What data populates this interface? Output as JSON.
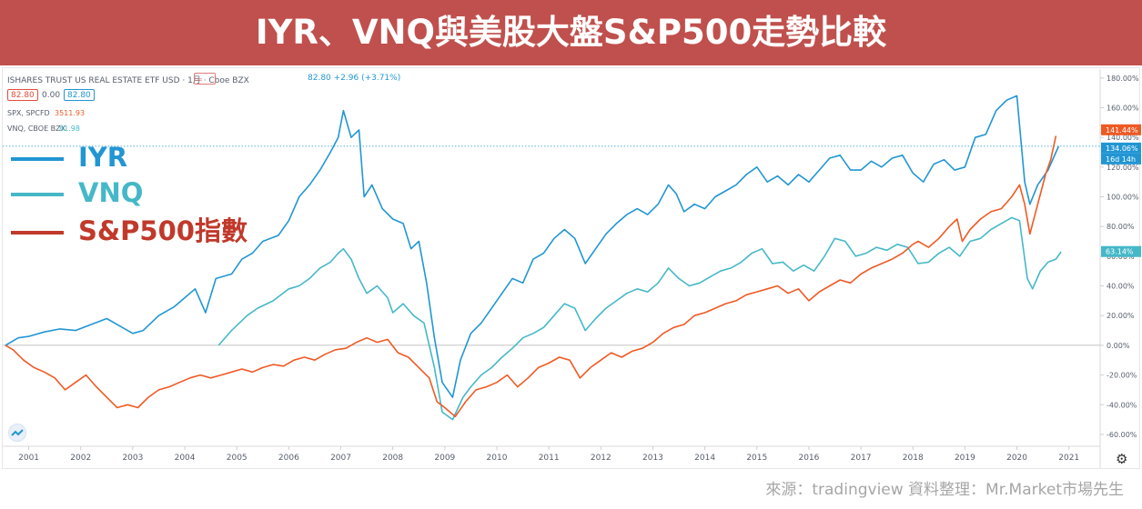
{
  "title": "IYR、VNQ與美股大盤S&P500走勢比較",
  "source_text": "來源：tradingview  資料整理：Mr.Market市場先生",
  "header": {
    "symbol_line": "ISHARES TRUST US REAL ESTATE ETF USD · 1月 · Cboe BZX",
    "price_line": "82.80 +2.96 (+3.71%)",
    "bid": "82.80",
    "spread": "0.00",
    "ask": "82.80",
    "spx_label": "SPX, SPCFD",
    "spx_value": "3511.93",
    "vnq_label": "VNQ, CBOE BZX",
    "vnq_value": "81.98"
  },
  "legend": {
    "iyr": "IYR",
    "vnq": "VNQ",
    "sp500": "S&P500指數"
  },
  "colors": {
    "title_bg": "#c0504d",
    "iyr": "#2196d3",
    "vnq": "#45b8c8",
    "sp500": "#ef5a24",
    "sp500_legend": "#c0392b"
  },
  "icons": {
    "settings": "gear-icon",
    "logo": "tradingview-logo-icon",
    "compare": "compare-icon"
  },
  "chart_data": {
    "type": "line",
    "title": "IYR、VNQ與美股大盤S&P500走勢比較",
    "x_axis": {
      "ticks": [
        "2001",
        "2002",
        "2003",
        "2004",
        "2005",
        "2006",
        "2007",
        "2008",
        "2009",
        "2010",
        "2011",
        "2012",
        "2013",
        "2014",
        "2015",
        "2016",
        "2017",
        "2018",
        "2019",
        "2020",
        "2021"
      ],
      "range": [
        2000.5,
        2021.6
      ]
    },
    "y_axis": {
      "unit": "%",
      "ticks": [
        "180.00%",
        "160.00%",
        "140.00%",
        "120.00%",
        "100.00%",
        "80.00%",
        "60.00%",
        "40.00%",
        "20.00%",
        "0.00%",
        "-20.00%",
        "-40.00%",
        "-60.00%"
      ],
      "range": [
        -68,
        186
      ],
      "position": "right"
    },
    "price_tags": {
      "sp500": "141.44%",
      "iyr": "134.06%",
      "countdown": "16d 14h",
      "vnq": "63.14%"
    },
    "grid": false,
    "baseline": 0,
    "series": [
      {
        "name": "IYR",
        "key": "iyr",
        "points": [
          [
            2000.55,
            0
          ],
          [
            2000.8,
            5
          ],
          [
            2001.0,
            6
          ],
          [
            2001.3,
            9
          ],
          [
            2001.6,
            11
          ],
          [
            2001.9,
            10
          ],
          [
            2002.2,
            14
          ],
          [
            2002.5,
            18
          ],
          [
            2002.8,
            12
          ],
          [
            2003.0,
            8
          ],
          [
            2003.2,
            10
          ],
          [
            2003.5,
            20
          ],
          [
            2003.8,
            26
          ],
          [
            2004.0,
            32
          ],
          [
            2004.2,
            38
          ],
          [
            2004.4,
            22
          ],
          [
            2004.6,
            45
          ],
          [
            2004.9,
            48
          ],
          [
            2005.1,
            58
          ],
          [
            2005.3,
            62
          ],
          [
            2005.5,
            70
          ],
          [
            2005.8,
            74
          ],
          [
            2006.0,
            84
          ],
          [
            2006.2,
            100
          ],
          [
            2006.4,
            108
          ],
          [
            2006.6,
            118
          ],
          [
            2006.8,
            130
          ],
          [
            2006.95,
            140
          ],
          [
            2007.05,
            158
          ],
          [
            2007.2,
            140
          ],
          [
            2007.35,
            145
          ],
          [
            2007.45,
            100
          ],
          [
            2007.6,
            108
          ],
          [
            2007.8,
            92
          ],
          [
            2008.0,
            85
          ],
          [
            2008.2,
            82
          ],
          [
            2008.35,
            65
          ],
          [
            2008.5,
            70
          ],
          [
            2008.65,
            42
          ],
          [
            2008.8,
            5
          ],
          [
            2008.95,
            -25
          ],
          [
            2009.15,
            -35
          ],
          [
            2009.3,
            -10
          ],
          [
            2009.5,
            8
          ],
          [
            2009.7,
            15
          ],
          [
            2009.9,
            25
          ],
          [
            2010.1,
            35
          ],
          [
            2010.3,
            45
          ],
          [
            2010.5,
            42
          ],
          [
            2010.7,
            58
          ],
          [
            2010.9,
            62
          ],
          [
            2011.1,
            72
          ],
          [
            2011.3,
            78
          ],
          [
            2011.5,
            72
          ],
          [
            2011.7,
            55
          ],
          [
            2011.9,
            65
          ],
          [
            2012.1,
            75
          ],
          [
            2012.3,
            82
          ],
          [
            2012.5,
            88
          ],
          [
            2012.7,
            92
          ],
          [
            2012.9,
            88
          ],
          [
            2013.1,
            95
          ],
          [
            2013.3,
            108
          ],
          [
            2013.45,
            102
          ],
          [
            2013.6,
            90
          ],
          [
            2013.8,
            95
          ],
          [
            2014.0,
            92
          ],
          [
            2014.2,
            100
          ],
          [
            2014.4,
            104
          ],
          [
            2014.6,
            108
          ],
          [
            2014.8,
            115
          ],
          [
            2015.0,
            120
          ],
          [
            2015.2,
            110
          ],
          [
            2015.4,
            114
          ],
          [
            2015.6,
            108
          ],
          [
            2015.8,
            115
          ],
          [
            2016.0,
            110
          ],
          [
            2016.2,
            118
          ],
          [
            2016.4,
            126
          ],
          [
            2016.6,
            128
          ],
          [
            2016.8,
            118
          ],
          [
            2017.0,
            118
          ],
          [
            2017.2,
            124
          ],
          [
            2017.4,
            120
          ],
          [
            2017.6,
            126
          ],
          [
            2017.8,
            128
          ],
          [
            2018.0,
            116
          ],
          [
            2018.2,
            110
          ],
          [
            2018.4,
            122
          ],
          [
            2018.6,
            125
          ],
          [
            2018.8,
            118
          ],
          [
            2019.0,
            120
          ],
          [
            2019.2,
            140
          ],
          [
            2019.4,
            142
          ],
          [
            2019.6,
            158
          ],
          [
            2019.8,
            165
          ],
          [
            2020.0,
            168
          ],
          [
            2020.15,
            110
          ],
          [
            2020.25,
            95
          ],
          [
            2020.4,
            108
          ],
          [
            2020.6,
            118
          ],
          [
            2020.8,
            134
          ]
        ]
      },
      {
        "name": "VNQ",
        "key": "vnq",
        "points": [
          [
            2004.65,
            0
          ],
          [
            2004.9,
            10
          ],
          [
            2005.2,
            20
          ],
          [
            2005.4,
            25
          ],
          [
            2005.7,
            30
          ],
          [
            2006.0,
            38
          ],
          [
            2006.2,
            40
          ],
          [
            2006.4,
            45
          ],
          [
            2006.6,
            52
          ],
          [
            2006.8,
            56
          ],
          [
            2006.95,
            62
          ],
          [
            2007.05,
            65
          ],
          [
            2007.2,
            58
          ],
          [
            2007.35,
            45
          ],
          [
            2007.5,
            35
          ],
          [
            2007.7,
            40
          ],
          [
            2007.9,
            32
          ],
          [
            2008.0,
            22
          ],
          [
            2008.2,
            28
          ],
          [
            2008.4,
            20
          ],
          [
            2008.6,
            15
          ],
          [
            2008.8,
            -15
          ],
          [
            2008.95,
            -45
          ],
          [
            2009.15,
            -50
          ],
          [
            2009.35,
            -35
          ],
          [
            2009.5,
            -28
          ],
          [
            2009.7,
            -20
          ],
          [
            2009.9,
            -15
          ],
          [
            2010.1,
            -8
          ],
          [
            2010.3,
            -2
          ],
          [
            2010.5,
            5
          ],
          [
            2010.7,
            8
          ],
          [
            2010.9,
            12
          ],
          [
            2011.1,
            20
          ],
          [
            2011.3,
            28
          ],
          [
            2011.5,
            25
          ],
          [
            2011.7,
            10
          ],
          [
            2011.9,
            18
          ],
          [
            2012.1,
            25
          ],
          [
            2012.3,
            30
          ],
          [
            2012.5,
            35
          ],
          [
            2012.7,
            38
          ],
          [
            2012.9,
            36
          ],
          [
            2013.1,
            42
          ],
          [
            2013.3,
            52
          ],
          [
            2013.5,
            45
          ],
          [
            2013.7,
            40
          ],
          [
            2013.9,
            42
          ],
          [
            2014.1,
            46
          ],
          [
            2014.3,
            50
          ],
          [
            2014.5,
            52
          ],
          [
            2014.7,
            56
          ],
          [
            2014.9,
            62
          ],
          [
            2015.1,
            65
          ],
          [
            2015.3,
            55
          ],
          [
            2015.5,
            56
          ],
          [
            2015.7,
            50
          ],
          [
            2015.9,
            54
          ],
          [
            2016.1,
            50
          ],
          [
            2016.3,
            60
          ],
          [
            2016.5,
            72
          ],
          [
            2016.7,
            70
          ],
          [
            2016.9,
            60
          ],
          [
            2017.1,
            62
          ],
          [
            2017.3,
            66
          ],
          [
            2017.5,
            64
          ],
          [
            2017.7,
            68
          ],
          [
            2017.9,
            66
          ],
          [
            2018.1,
            55
          ],
          [
            2018.3,
            56
          ],
          [
            2018.5,
            62
          ],
          [
            2018.7,
            66
          ],
          [
            2018.9,
            60
          ],
          [
            2019.1,
            70
          ],
          [
            2019.3,
            72
          ],
          [
            2019.5,
            78
          ],
          [
            2019.7,
            82
          ],
          [
            2019.9,
            86
          ],
          [
            2020.05,
            84
          ],
          [
            2020.2,
            45
          ],
          [
            2020.3,
            38
          ],
          [
            2020.45,
            50
          ],
          [
            2020.6,
            56
          ],
          [
            2020.75,
            58
          ],
          [
            2020.85,
            63
          ]
        ]
      },
      {
        "name": "S&P500指數",
        "key": "sp500",
        "points": [
          [
            2000.55,
            0
          ],
          [
            2000.7,
            -3
          ],
          [
            2000.9,
            -10
          ],
          [
            2001.1,
            -15
          ],
          [
            2001.3,
            -18
          ],
          [
            2001.5,
            -22
          ],
          [
            2001.7,
            -30
          ],
          [
            2001.9,
            -25
          ],
          [
            2002.1,
            -20
          ],
          [
            2002.3,
            -28
          ],
          [
            2002.5,
            -35
          ],
          [
            2002.7,
            -42
          ],
          [
            2002.9,
            -40
          ],
          [
            2003.1,
            -42
          ],
          [
            2003.3,
            -35
          ],
          [
            2003.5,
            -30
          ],
          [
            2003.7,
            -28
          ],
          [
            2003.9,
            -25
          ],
          [
            2004.1,
            -22
          ],
          [
            2004.3,
            -20
          ],
          [
            2004.5,
            -22
          ],
          [
            2004.7,
            -20
          ],
          [
            2004.9,
            -18
          ],
          [
            2005.1,
            -16
          ],
          [
            2005.3,
            -18
          ],
          [
            2005.5,
            -15
          ],
          [
            2005.7,
            -13
          ],
          [
            2005.9,
            -14
          ],
          [
            2006.1,
            -10
          ],
          [
            2006.3,
            -8
          ],
          [
            2006.5,
            -10
          ],
          [
            2006.7,
            -6
          ],
          [
            2006.9,
            -3
          ],
          [
            2007.1,
            -2
          ],
          [
            2007.3,
            2
          ],
          [
            2007.5,
            5
          ],
          [
            2007.7,
            2
          ],
          [
            2007.9,
            4
          ],
          [
            2008.1,
            -5
          ],
          [
            2008.3,
            -8
          ],
          [
            2008.5,
            -15
          ],
          [
            2008.7,
            -22
          ],
          [
            2008.85,
            -38
          ],
          [
            2009.0,
            -42
          ],
          [
            2009.2,
            -48
          ],
          [
            2009.4,
            -38
          ],
          [
            2009.6,
            -30
          ],
          [
            2009.8,
            -28
          ],
          [
            2010.0,
            -25
          ],
          [
            2010.2,
            -20
          ],
          [
            2010.4,
            -28
          ],
          [
            2010.6,
            -22
          ],
          [
            2010.8,
            -15
          ],
          [
            2011.0,
            -12
          ],
          [
            2011.2,
            -8
          ],
          [
            2011.4,
            -10
          ],
          [
            2011.6,
            -22
          ],
          [
            2011.8,
            -15
          ],
          [
            2012.0,
            -10
          ],
          [
            2012.2,
            -5
          ],
          [
            2012.4,
            -8
          ],
          [
            2012.6,
            -4
          ],
          [
            2012.8,
            -2
          ],
          [
            2013.0,
            2
          ],
          [
            2013.2,
            8
          ],
          [
            2013.4,
            12
          ],
          [
            2013.6,
            14
          ],
          [
            2013.8,
            20
          ],
          [
            2014.0,
            22
          ],
          [
            2014.2,
            25
          ],
          [
            2014.4,
            28
          ],
          [
            2014.6,
            30
          ],
          [
            2014.8,
            34
          ],
          [
            2015.0,
            36
          ],
          [
            2015.2,
            38
          ],
          [
            2015.4,
            40
          ],
          [
            2015.6,
            35
          ],
          [
            2015.8,
            38
          ],
          [
            2016.0,
            30
          ],
          [
            2016.2,
            36
          ],
          [
            2016.4,
            40
          ],
          [
            2016.6,
            44
          ],
          [
            2016.8,
            42
          ],
          [
            2017.0,
            48
          ],
          [
            2017.2,
            52
          ],
          [
            2017.4,
            55
          ],
          [
            2017.6,
            58
          ],
          [
            2017.8,
            62
          ],
          [
            2018.0,
            68
          ],
          [
            2018.1,
            70
          ],
          [
            2018.3,
            66
          ],
          [
            2018.5,
            72
          ],
          [
            2018.7,
            80
          ],
          [
            2018.85,
            85
          ],
          [
            2018.95,
            70
          ],
          [
            2019.1,
            78
          ],
          [
            2019.3,
            85
          ],
          [
            2019.5,
            90
          ],
          [
            2019.7,
            92
          ],
          [
            2019.9,
            100
          ],
          [
            2020.05,
            108
          ],
          [
            2020.15,
            95
          ],
          [
            2020.25,
            75
          ],
          [
            2020.4,
            95
          ],
          [
            2020.55,
            115
          ],
          [
            2020.65,
            125
          ],
          [
            2020.75,
            141
          ]
        ]
      }
    ]
  }
}
